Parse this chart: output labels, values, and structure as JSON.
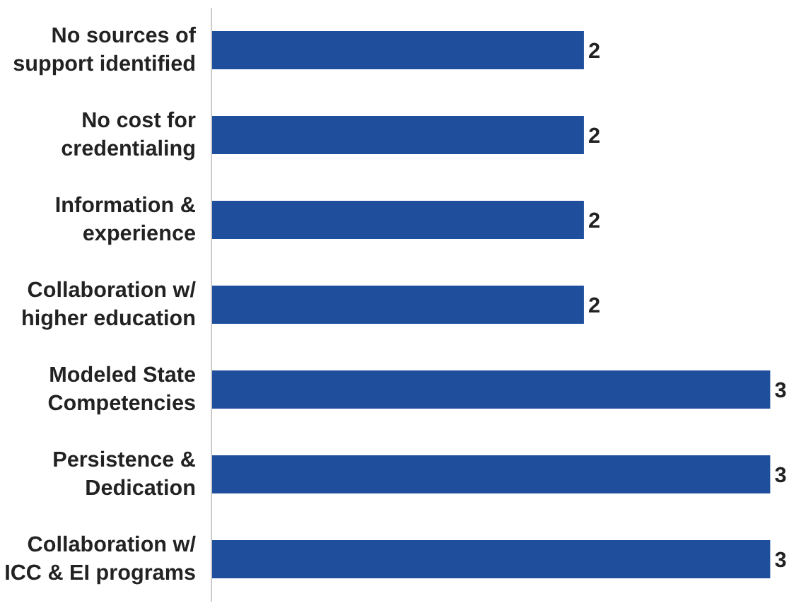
{
  "chart_data": {
    "type": "bar",
    "orientation": "horizontal",
    "categories": [
      "No sources of support identified",
      "No cost for credentialing",
      "Information & experience",
      "Collaboration w/ higher education",
      "Modeled State Competencies",
      "Persistence & Dedication",
      "Collaboration w/ ICC & EI programs"
    ],
    "values": [
      2,
      2,
      2,
      2,
      3,
      3,
      3
    ],
    "color": "#1f4e9c",
    "data_labels": true,
    "grid": false
  }
}
